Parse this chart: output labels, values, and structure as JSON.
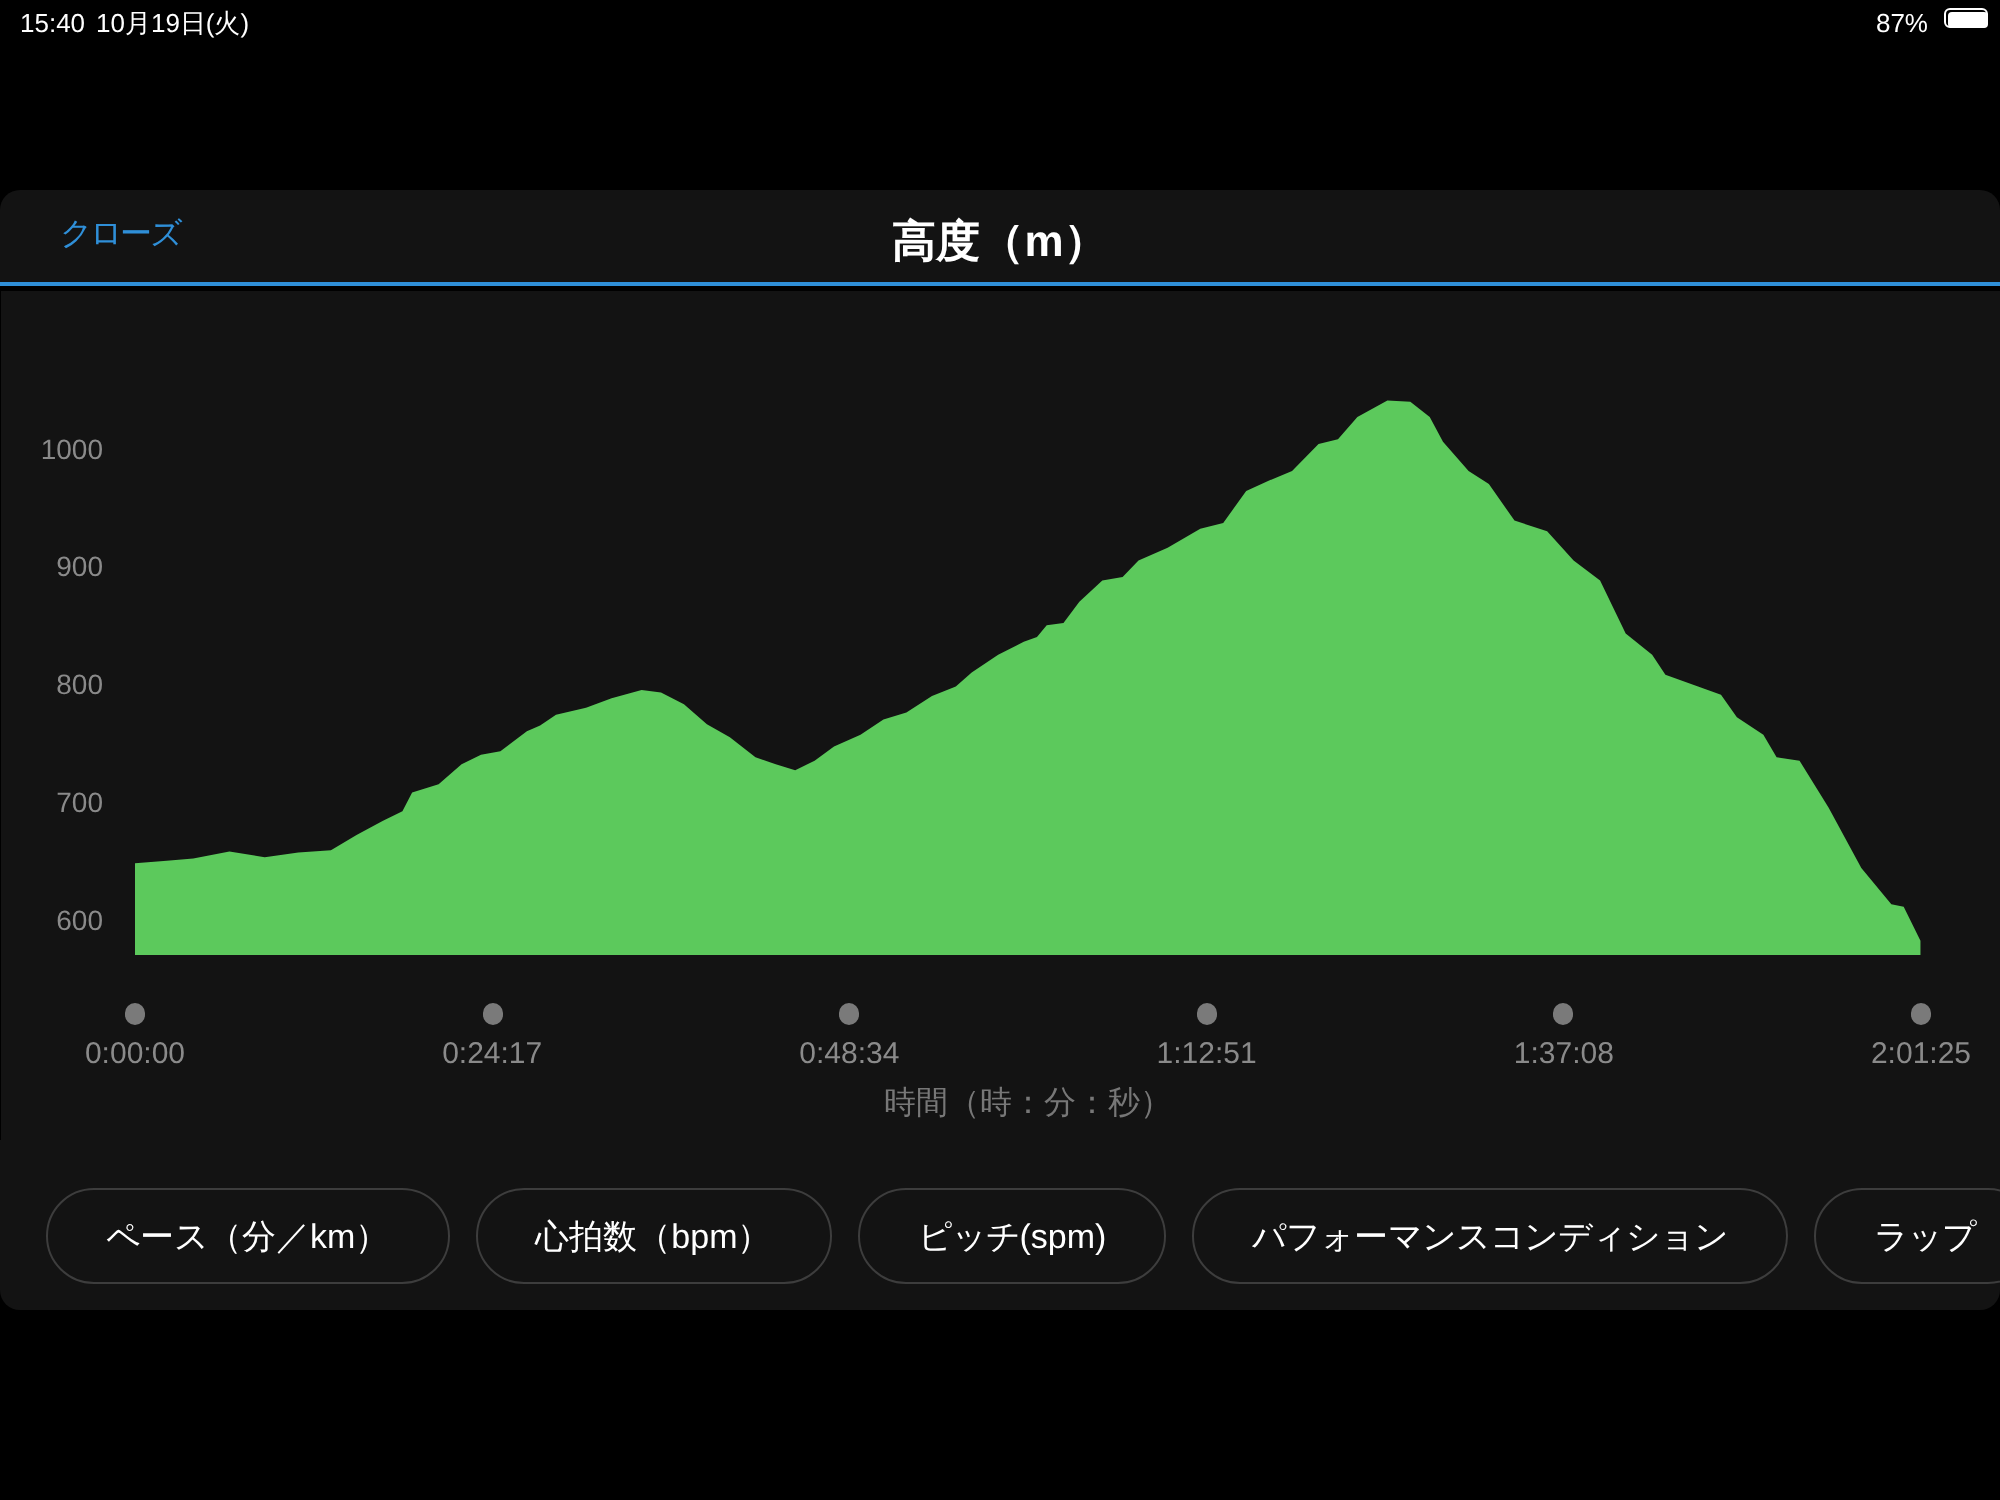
{
  "chart_data": {
    "type": "area",
    "title": "高度（m）",
    "xlabel": "時間（時：分：秒）",
    "x": [
      0,
      0.036,
      0.066,
      0.107,
      0.147,
      0.185,
      0.222,
      0.251,
      0.281,
      0.303,
      0.314,
      0.344,
      0.37,
      0.392,
      0.414,
      0.444,
      0.459,
      0.477,
      0.511,
      0.54,
      0.574,
      0.596,
      0.622,
      0.648,
      0.674,
      0.703,
      0.726,
      0.748,
      0.77,
      0.792,
      0.822,
      0.848,
      0.874,
      0.903,
      0.93,
      0.948,
      0.978,
      1.007,
      1.022,
      1.033,
      1.052,
      1.07,
      1.096,
      1.119,
      1.137,
      1.17,
      1.207,
      1.233,
      1.259,
      1.285,
      1.311,
      1.341,
      1.363,
      1.385,
      1.419,
      1.445,
      1.467,
      1.482,
      1.511,
      1.534,
      1.563,
      1.6,
      1.63,
      1.66,
      1.689,
      1.719,
      1.734,
      1.771,
      1.797,
      1.815,
      1.845,
      1.86,
      1.886,
      1.919,
      1.956,
      1.99,
      2.004,
      2.023
    ],
    "values": [
      648,
      650,
      652,
      658,
      653,
      657,
      659,
      672,
      684,
      692,
      708,
      715,
      732,
      740,
      743,
      760,
      765,
      774,
      780,
      788,
      795,
      793,
      783,
      766,
      755,
      738,
      732,
      727,
      735,
      747,
      757,
      770,
      776,
      790,
      798,
      810,
      825,
      836,
      840,
      850,
      852,
      870,
      888,
      891,
      905,
      916,
      932,
      937,
      964,
      973,
      981,
      1004,
      1008,
      1027,
      1041,
      1040,
      1027,
      1006,
      981,
      970,
      939,
      930,
      905,
      888,
      843,
      825,
      808,
      798,
      791,
      772,
      757,
      738,
      735,
      695,
      644,
      613,
      611,
      582
    ],
    "color": "#5cc95c",
    "xlim": [
      0,
      2.023611
    ],
    "ylim": [
      570,
      1100
    ],
    "xticks": [
      {
        "value": 0,
        "label": "0:00:00"
      },
      {
        "value": 0.404722,
        "label": "0:24:17"
      },
      {
        "value": 0.809444,
        "label": "0:48:34"
      },
      {
        "value": 1.214167,
        "label": "1:12:51"
      },
      {
        "value": 1.618889,
        "label": "1:37:08"
      },
      {
        "value": 2.023611,
        "label": "2:01:25"
      }
    ],
    "yticks": [
      600,
      700,
      800,
      900,
      1000
    ],
    "grid": false,
    "annotations": [
      "15:40",
      "10月19日(火)",
      "87%",
      "クローズ",
      "ペース（分／km）",
      "心拍数（bpm）",
      "ピッチ(spm)",
      "パフォーマンスコンディション",
      "ラップ"
    ]
  }
}
